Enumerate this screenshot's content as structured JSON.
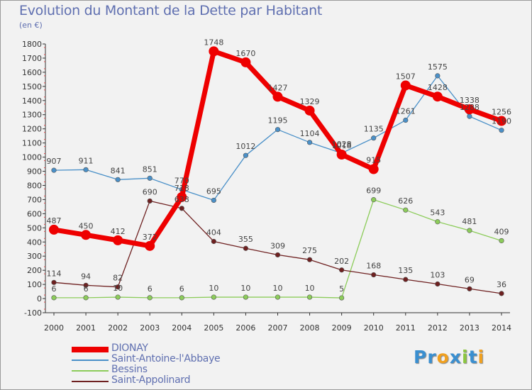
{
  "title": "Evolution du Montant de la Dette par Habitant",
  "subtitle": "(en €)",
  "logo": {
    "letters": [
      {
        "ch": "P",
        "color": "#3a8fd0"
      },
      {
        "ch": "r",
        "color": "#3a8fd0"
      },
      {
        "ch": "o",
        "color": "#f0a020"
      },
      {
        "ch": "x",
        "color": "#3a8fd0"
      },
      {
        "ch": "i",
        "color": "#8cc63f"
      },
      {
        "ch": "t",
        "color": "#3a8fd0"
      },
      {
        "ch": "i",
        "color": "#f0a020"
      }
    ]
  },
  "chart_data": {
    "type": "line",
    "title": "Evolution du Montant de la Dette par Habitant",
    "subtitle": "(en €)",
    "x": [
      "2000",
      "2001",
      "2002",
      "2003",
      "2004",
      "2005",
      "2006",
      "2007",
      "2008",
      "2009",
      "2010",
      "2011",
      "2012",
      "2013",
      "2014"
    ],
    "ylim": [
      -100,
      1800
    ],
    "yticks": [
      -100,
      0,
      100,
      200,
      300,
      400,
      500,
      600,
      700,
      800,
      900,
      1000,
      1100,
      1200,
      1300,
      1400,
      1500,
      1600,
      1700,
      1800
    ],
    "grid": false,
    "legend_position": "bottom-left",
    "series": [
      {
        "name": "DIONAY",
        "color": "#ee0000",
        "emphasis": true,
        "values": [
          487,
          450,
          412,
          372,
          718,
          1748,
          1670,
          1427,
          1329,
          1018,
          915,
          1507,
          1428,
          1338,
          1256
        ],
        "labels": [
          "487",
          "450",
          "412",
          "372",
          "718",
          "1748",
          "1670",
          "1427",
          "1329",
          "1018",
          "915",
          "1507",
          "1428",
          "1338",
          "1256"
        ]
      },
      {
        "name": "Saint-Antoine-l'Abbaye",
        "color": "#4a90c8",
        "values": [
          907,
          911,
          841,
          851,
          770,
          695,
          1012,
          1195,
          1104,
          1028,
          1135,
          1261,
          1575,
          1288,
          1190
        ],
        "labels": [
          "907",
          "911",
          "841",
          "851",
          "770",
          "695",
          "1012",
          "1195",
          "1104",
          "1028",
          "1135",
          "1261",
          "1575",
          "1288",
          "1190"
        ]
      },
      {
        "name": "Bessins",
        "color": "#8ccc5a",
        "values": [
          6,
          6,
          10,
          6,
          6,
          10,
          10,
          10,
          10,
          5,
          699,
          626,
          543,
          481,
          409
        ],
        "labels": [
          "6",
          "6",
          "10",
          "6",
          "6",
          "10",
          "10",
          "10",
          "10",
          "5",
          "699",
          "626",
          "543",
          "481",
          "409"
        ]
      },
      {
        "name": "Saint-Appolinard",
        "color": "#6e2020",
        "values": [
          114,
          94,
          82,
          690,
          638,
          404,
          355,
          309,
          275,
          202,
          168,
          135,
          103,
          69,
          36
        ],
        "labels": [
          "114",
          "94",
          "82",
          "690",
          "638",
          "404",
          "355",
          "309",
          "275",
          "202",
          "168",
          "135",
          "103",
          "69",
          "36"
        ]
      }
    ]
  }
}
